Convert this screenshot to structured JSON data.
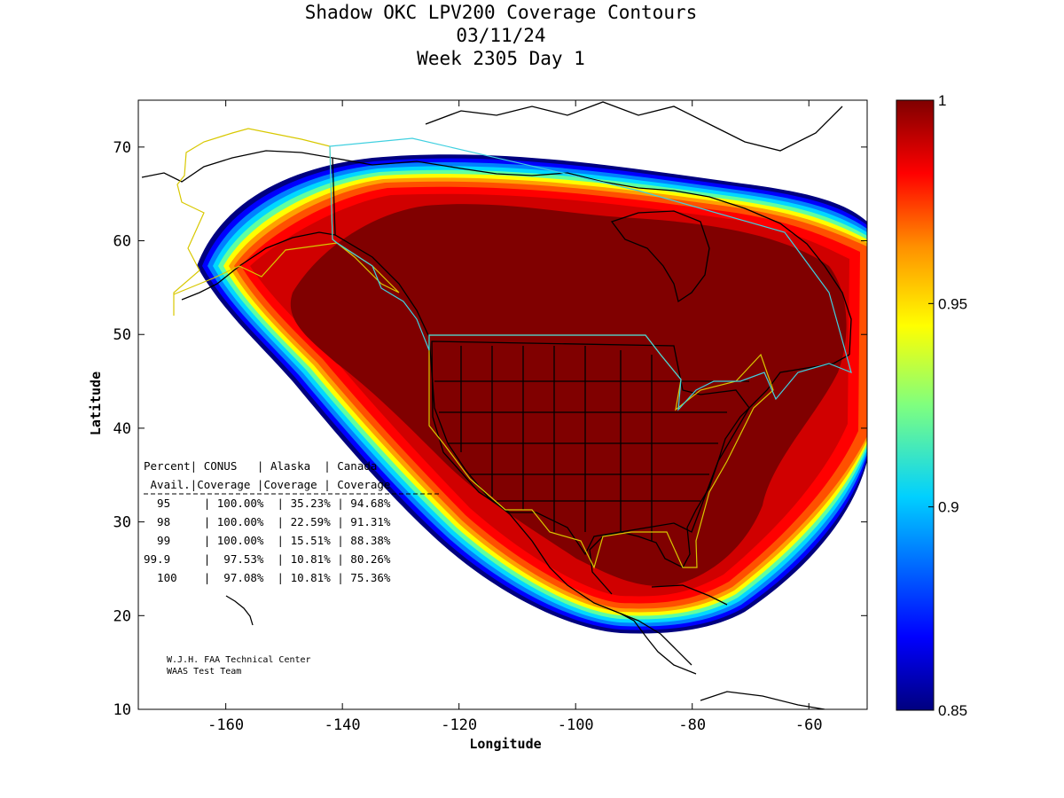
{
  "title": {
    "line1": "Shadow OKC LPV200 Coverage Contours",
    "line2": "03/11/24",
    "line3": "Week 2305 Day 1"
  },
  "axes": {
    "xlabel": "Longitude",
    "ylabel": "Latitude",
    "xlim": [
      -175,
      -50
    ],
    "ylim": [
      10,
      75
    ],
    "xticks": [
      -160,
      -140,
      -120,
      -100,
      -80,
      -60
    ],
    "xtick_labels": [
      "-160",
      "-140",
      "-120",
      "-100",
      "-80",
      "-60"
    ],
    "yticks": [
      10,
      20,
      30,
      40,
      50,
      60,
      70
    ],
    "ytick_labels": [
      "10",
      "20",
      "30",
      "40",
      "50",
      "60",
      "70"
    ]
  },
  "colorbar": {
    "min": 0.85,
    "max": 1,
    "colormap": "jet",
    "ticks": [
      0.85,
      0.9,
      0.95,
      1
    ],
    "tick_labels": [
      "0.85",
      "0.9",
      "0.95",
      "1"
    ]
  },
  "table": {
    "header1": [
      "Percent",
      "CONUS",
      "Alaska",
      "Canada"
    ],
    "header2": [
      "Avail.",
      "Coverage",
      "Coverage",
      "Coverage"
    ],
    "rows": [
      [
        "95",
        "100.00%",
        "35.23%",
        "94.68%"
      ],
      [
        "98",
        "100.00%",
        "22.59%",
        "91.31%"
      ],
      [
        "99",
        "100.00%",
        "15.51%",
        "88.38%"
      ],
      [
        "99.9",
        "97.53%",
        "10.81%",
        "80.26%"
      ],
      [
        "100",
        "97.08%",
        "10.81%",
        "75.36%"
      ]
    ]
  },
  "credit": {
    "line1": "W.J.H. FAA Technical Center",
    "line2": "WAAS Test Team"
  },
  "colors": {
    "full_coverage": "#800000",
    "conus_boundary": "#d8c800",
    "canada_boundary": "#40d0e0",
    "coastline": "#000000"
  }
}
